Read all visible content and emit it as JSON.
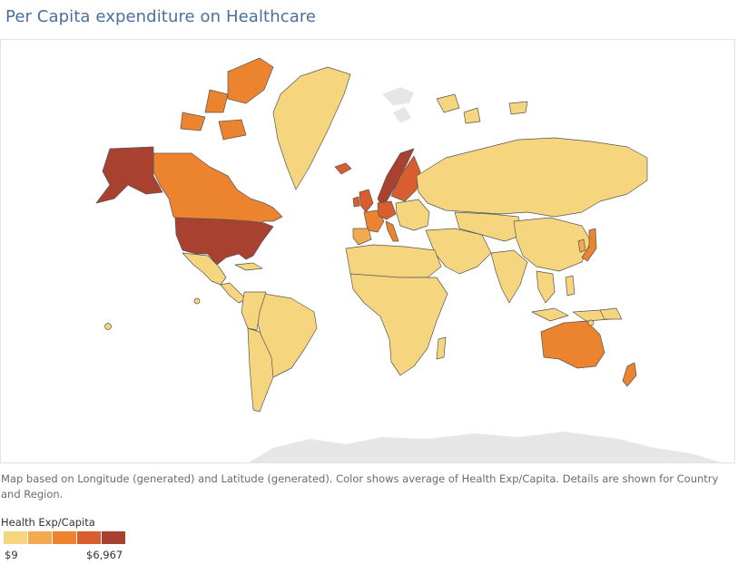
{
  "title": "Per Capita expenditure on Healthcare",
  "caption": "Map based on Longitude (generated) and Latitude (generated).  Color shows average of Health Exp/Capita.  Details are shown for Country and Region.",
  "legend": {
    "title": "Health Exp/Capita",
    "min_label": "$9",
    "max_label": "$6,967",
    "colors": [
      "#f5d57e",
      "#f2a94f",
      "#ec832e",
      "#d95e2f",
      "#a8412f"
    ]
  },
  "map": {
    "measure": "Health Exp/Capita",
    "color_scale_colors": {
      "low": "#f5d57e",
      "mid_low": "#f2a94f",
      "mid": "#ec832e",
      "mid_high": "#d95e2f",
      "high": "#a8412f",
      "no_data": "#e6e6e6"
    }
  }
}
